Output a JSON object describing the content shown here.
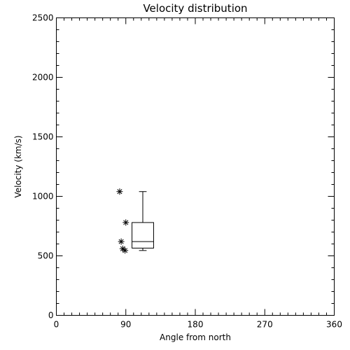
{
  "chart_data": {
    "type": "box",
    "title": "Velocity distribution",
    "xlabel": "Angle from north",
    "ylabel": "Velocity (km/s)",
    "xlim": [
      0,
      360
    ],
    "ylim": [
      0,
      2500
    ],
    "xticks": [
      0,
      90,
      180,
      270,
      360
    ],
    "yticks": [
      0,
      500,
      1000,
      1500,
      2000,
      2500
    ],
    "x_minor_step": 10,
    "y_minor_step": 100,
    "boxes": [
      {
        "x": 112,
        "width": 28,
        "whisker_low": 545,
        "q1": 565,
        "median": 620,
        "q3": 780,
        "whisker_high": 1040
      }
    ],
    "points": [
      {
        "x": 82,
        "y": 1040
      },
      {
        "x": 90,
        "y": 780
      },
      {
        "x": 84,
        "y": 620
      },
      {
        "x": 86,
        "y": 560
      },
      {
        "x": 89,
        "y": 545
      }
    ],
    "grid": false,
    "legend": "none"
  }
}
